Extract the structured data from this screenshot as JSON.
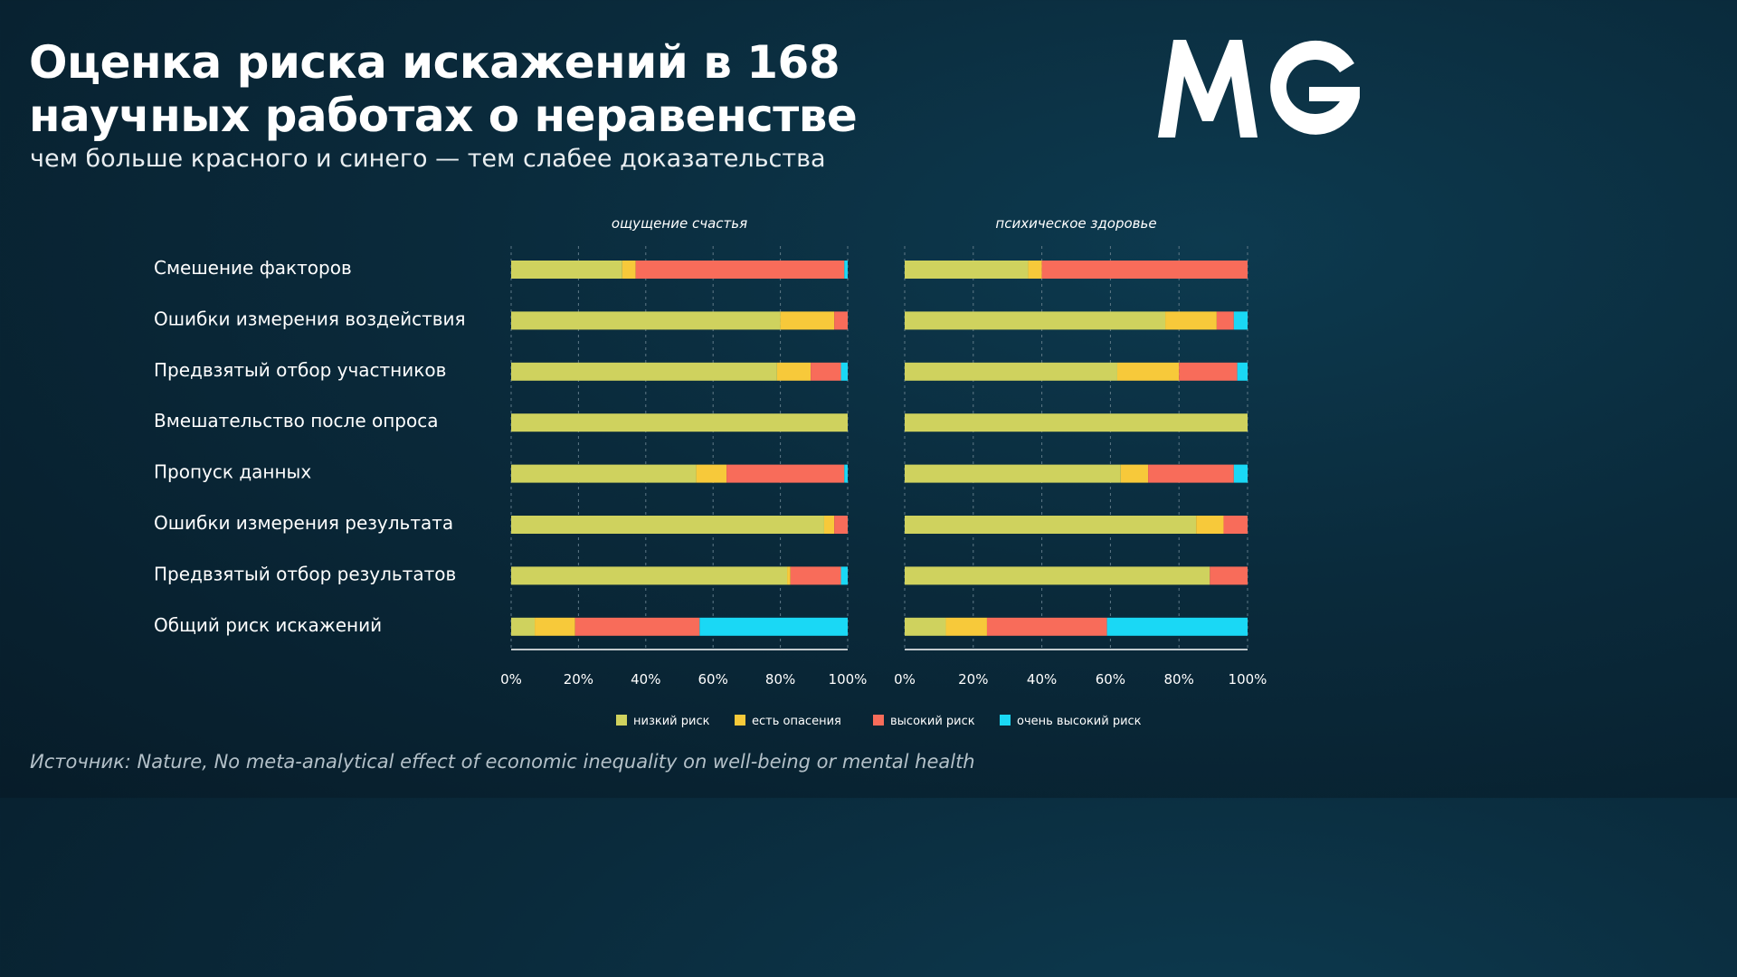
{
  "header": {
    "title": "Оценка риска искажений в 168 научных работах о неравенстве",
    "subtitle": "чем больше красного и синего — тем слабее доказательства",
    "logo_text": "MG"
  },
  "source": "Источник: Nature, No meta-analytical effect of economic inequality on well-being or mental health",
  "colors": {
    "background": "#0a2a3b",
    "low": "#cfd25e",
    "concerns": "#f7c93a",
    "high": "#f86c5a",
    "very_high": "#1ad8f5"
  },
  "chart_data": {
    "type": "bar",
    "orientation": "horizontal",
    "stacked": true,
    "categories": [
      "Смешение факторов",
      "Ошибки измерения воздействия",
      "Предвзятый отбор участников",
      "Вмешательство после опроса",
      "Пропуск данных",
      "Ошибки измерения результата",
      "Предвзятый отбор результатов",
      "Общий риск искажений"
    ],
    "legend": [
      "низкий риск",
      "есть опасения",
      "высокий риск",
      "очень высокий риск"
    ],
    "legend_position": "bottom",
    "xlim": [
      0,
      100
    ],
    "xticks": [
      "0%",
      "20%",
      "40%",
      "60%",
      "80%",
      "100%"
    ],
    "grid": true,
    "panels": [
      {
        "title": "ощущение счастья",
        "series": [
          {
            "name": "низкий риск",
            "values": [
              33,
              80,
              79,
              100,
              55,
              93,
              82,
              7
            ]
          },
          {
            "name": "есть опасения",
            "values": [
              4,
              16,
              10,
              0,
              9,
              3,
              1,
              12
            ]
          },
          {
            "name": "высокий риск",
            "values": [
              62,
              4,
              9,
              0,
              35,
              4,
              15,
              37
            ]
          },
          {
            "name": "очень высокий риск",
            "values": [
              1,
              0,
              2,
              0,
              1,
              0,
              2,
              44
            ]
          }
        ]
      },
      {
        "title": "психическое здоровье",
        "series": [
          {
            "name": "низкий риск",
            "values": [
              36,
              76,
              62,
              100,
              63,
              85,
              89,
              12
            ]
          },
          {
            "name": "есть опасения",
            "values": [
              4,
              15,
              18,
              0,
              8,
              8,
              0,
              12
            ]
          },
          {
            "name": "высокий риск",
            "values": [
              60,
              5,
              17,
              0,
              25,
              7,
              11,
              35
            ]
          },
          {
            "name": "очень высокий риск",
            "values": [
              0,
              4,
              3,
              0,
              4,
              0,
              0,
              41
            ]
          }
        ]
      }
    ]
  }
}
